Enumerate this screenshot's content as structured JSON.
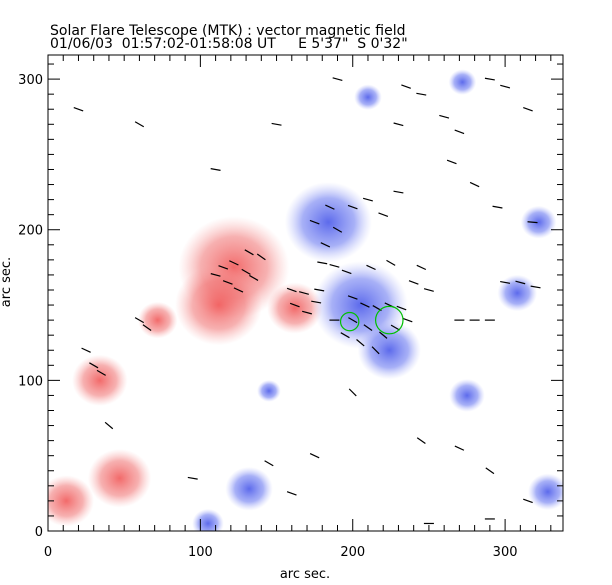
{
  "chart_data": {
    "type": "heatmap",
    "title": "Solar Flare Telescope (MTK) : vector magnetic field",
    "subtitle": "01/06/03  01:57:02-01:58:08 UT     E 5'37\"  S 0'32\"",
    "xlabel": "arc sec.",
    "ylabel": "arc sec.",
    "xlim": [
      0,
      338
    ],
    "ylim": [
      0,
      316
    ],
    "xticks": [
      "0",
      "100",
      "200",
      "300"
    ],
    "yticks": [
      "0",
      "100",
      "200",
      "300"
    ],
    "colors": {
      "positive": "#f06060",
      "negative": "#6070f0",
      "vector": "#000000",
      "circle": "#00c000"
    },
    "regions": [
      {
        "polarity": "positive",
        "x": 122,
        "y": 175,
        "r": 28
      },
      {
        "polarity": "positive",
        "x": 112,
        "y": 150,
        "r": 22
      },
      {
        "polarity": "positive",
        "x": 162,
        "y": 148,
        "r": 14
      },
      {
        "polarity": "positive",
        "x": 34,
        "y": 100,
        "r": 14
      },
      {
        "polarity": "positive",
        "x": 47,
        "y": 35,
        "r": 16
      },
      {
        "polarity": "positive",
        "x": 12,
        "y": 20,
        "r": 14
      },
      {
        "polarity": "positive",
        "x": 72,
        "y": 140,
        "r": 10
      },
      {
        "polarity": "negative",
        "x": 184,
        "y": 205,
        "r": 22
      },
      {
        "polarity": "negative",
        "x": 205,
        "y": 150,
        "r": 24
      },
      {
        "polarity": "negative",
        "x": 224,
        "y": 120,
        "r": 16
      },
      {
        "polarity": "negative",
        "x": 308,
        "y": 158,
        "r": 10
      },
      {
        "polarity": "negative",
        "x": 322,
        "y": 205,
        "r": 9
      },
      {
        "polarity": "negative",
        "x": 328,
        "y": 26,
        "r": 10
      },
      {
        "polarity": "negative",
        "x": 132,
        "y": 28,
        "r": 12
      },
      {
        "polarity": "negative",
        "x": 272,
        "y": 298,
        "r": 7
      },
      {
        "polarity": "negative",
        "x": 210,
        "y": 288,
        "r": 7
      },
      {
        "polarity": "negative",
        "x": 145,
        "y": 93,
        "r": 6
      },
      {
        "polarity": "negative",
        "x": 275,
        "y": 90,
        "r": 9
      },
      {
        "polarity": "negative",
        "x": 105,
        "y": 5,
        "r": 8
      }
    ],
    "circles": [
      {
        "x": 198,
        "y": 139,
        "r": 6
      },
      {
        "x": 224,
        "y": 140,
        "r": 9
      }
    ],
    "vectors": [
      [
        115,
        175,
        -20
      ],
      [
        122,
        178,
        -25
      ],
      [
        130,
        172,
        -30
      ],
      [
        118,
        165,
        -20
      ],
      [
        125,
        160,
        -25
      ],
      [
        135,
        168,
        -30
      ],
      [
        110,
        170,
        -15
      ],
      [
        140,
        182,
        -35
      ],
      [
        132,
        185,
        -30
      ],
      [
        160,
        160,
        -20
      ],
      [
        168,
        158,
        -15
      ],
      [
        176,
        152,
        -10
      ],
      [
        162,
        150,
        -20
      ],
      [
        170,
        145,
        -15
      ],
      [
        178,
        160,
        -10
      ],
      [
        180,
        178,
        -10
      ],
      [
        188,
        176,
        -15
      ],
      [
        196,
        172,
        -20
      ],
      [
        182,
        190,
        -25
      ],
      [
        190,
        200,
        -30
      ],
      [
        175,
        205,
        -20
      ],
      [
        200,
        155,
        -20
      ],
      [
        208,
        150,
        -25
      ],
      [
        216,
        148,
        -30
      ],
      [
        224,
        150,
        -25
      ],
      [
        232,
        148,
        -20
      ],
      [
        200,
        140,
        -30
      ],
      [
        210,
        135,
        -35
      ],
      [
        220,
        130,
        -40
      ],
      [
        228,
        135,
        -30
      ],
      [
        236,
        140,
        -20
      ],
      [
        205,
        125,
        -40
      ],
      [
        215,
        120,
        -45
      ],
      [
        188,
        140,
        0
      ],
      [
        195,
        130,
        -30
      ],
      [
        240,
        165,
        -20
      ],
      [
        250,
        160,
        -15
      ],
      [
        245,
        175,
        -25
      ],
      [
        212,
        175,
        -25
      ],
      [
        225,
        178,
        -30
      ],
      [
        270,
        140,
        0
      ],
      [
        280,
        140,
        0
      ],
      [
        290,
        140,
        0
      ],
      [
        300,
        165,
        -10
      ],
      [
        310,
        165,
        -15
      ],
      [
        320,
        162,
        -10
      ],
      [
        200,
        215,
        -20
      ],
      [
        210,
        220,
        -15
      ],
      [
        220,
        210,
        -20
      ],
      [
        230,
        225,
        -10
      ],
      [
        185,
        215,
        -25
      ],
      [
        190,
        300,
        -15
      ],
      [
        235,
        295,
        -20
      ],
      [
        245,
        290,
        -10
      ],
      [
        260,
        275,
        -15
      ],
      [
        270,
        265,
        -20
      ],
      [
        290,
        300,
        -10
      ],
      [
        300,
        295,
        -15
      ],
      [
        315,
        280,
        -20
      ],
      [
        30,
        110,
        -30
      ],
      [
        25,
        120,
        -25
      ],
      [
        35,
        105,
        -30
      ],
      [
        40,
        70,
        -40
      ],
      [
        60,
        140,
        -30
      ],
      [
        65,
        135,
        -35
      ],
      [
        200,
        92,
        -45
      ],
      [
        245,
        60,
        -35
      ],
      [
        270,
        55,
        -25
      ],
      [
        290,
        40,
        -35
      ],
      [
        315,
        20,
        -20
      ],
      [
        250,
        5,
        0
      ],
      [
        290,
        8,
        0
      ],
      [
        160,
        25,
        -20
      ],
      [
        175,
        50,
        -25
      ],
      [
        145,
        45,
        -30
      ],
      [
        95,
        35,
        -10
      ],
      [
        20,
        280,
        -20
      ],
      [
        60,
        270,
        -30
      ],
      [
        230,
        270,
        -15
      ],
      [
        265,
        245,
        -20
      ],
      [
        280,
        230,
        -25
      ],
      [
        295,
        215,
        -10
      ],
      [
        318,
        205,
        -5
      ],
      [
        110,
        240,
        -10
      ],
      [
        150,
        270,
        -10
      ]
    ]
  }
}
